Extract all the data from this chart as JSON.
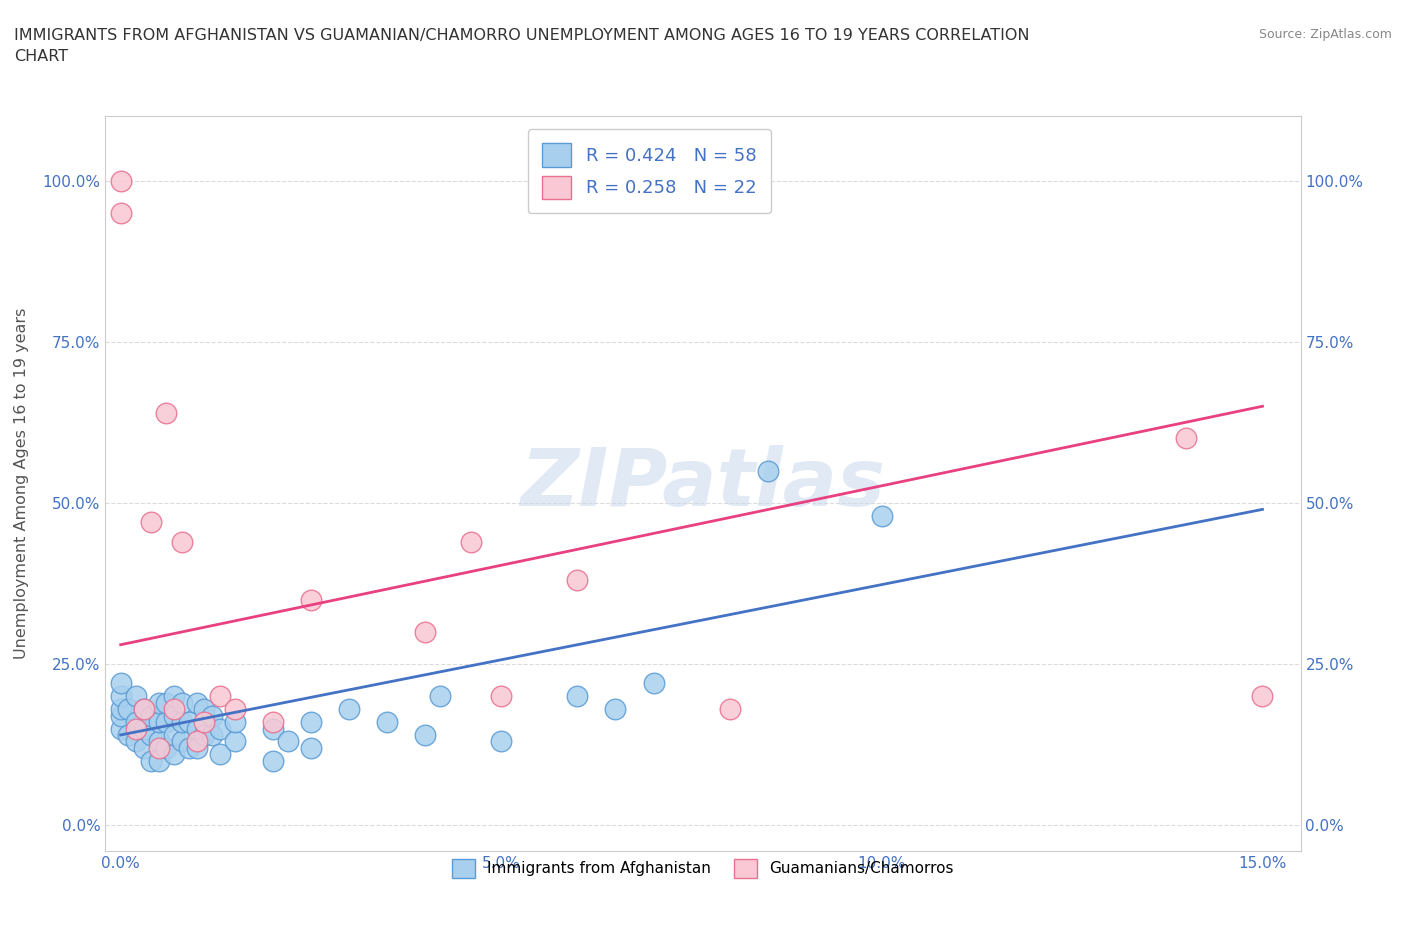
{
  "title": "IMMIGRANTS FROM AFGHANISTAN VS GUAMANIAN/CHAMORRO UNEMPLOYMENT AMONG AGES 16 TO 19 YEARS CORRELATION\nCHART",
  "source": "Source: ZipAtlas.com",
  "ylabel": "Unemployment Among Ages 16 to 19 years",
  "x_ticks": [
    0.0,
    0.05,
    0.1,
    0.15
  ],
  "x_tick_labels": [
    "0.0%",
    "5.0%",
    "10.0%",
    "15.0%"
  ],
  "y_ticks": [
    0.0,
    0.25,
    0.5,
    0.75,
    1.0
  ],
  "y_tick_labels": [
    "0.0%",
    "25.0%",
    "50.0%",
    "75.0%",
    "100.0%"
  ],
  "blue_color": "#A8D0EE",
  "blue_edge_color": "#5B9BD5",
  "pink_color": "#F9C8D4",
  "pink_edge_color": "#E87090",
  "blue_line_color": "#4472C4",
  "pink_line_color": "#E84080",
  "R_blue": 0.424,
  "N_blue": 58,
  "R_pink": 0.258,
  "N_pink": 22,
  "legend_label_blue": "Immigrants from Afghanistan",
  "legend_label_pink": "Guamanians/Chamorros",
  "watermark": "ZIPatlas",
  "blue_x": [
    0.0,
    0.0,
    0.0,
    0.0,
    0.0,
    0.001,
    0.001,
    0.002,
    0.002,
    0.002,
    0.003,
    0.003,
    0.003,
    0.004,
    0.004,
    0.004,
    0.005,
    0.005,
    0.005,
    0.005,
    0.006,
    0.006,
    0.006,
    0.007,
    0.007,
    0.007,
    0.007,
    0.008,
    0.008,
    0.008,
    0.009,
    0.009,
    0.01,
    0.01,
    0.01,
    0.011,
    0.011,
    0.012,
    0.012,
    0.013,
    0.013,
    0.015,
    0.015,
    0.02,
    0.02,
    0.022,
    0.025,
    0.025,
    0.03,
    0.035,
    0.04,
    0.042,
    0.05,
    0.06,
    0.065,
    0.07,
    0.085,
    0.1
  ],
  "blue_y": [
    0.15,
    0.17,
    0.18,
    0.2,
    0.22,
    0.14,
    0.18,
    0.13,
    0.16,
    0.2,
    0.12,
    0.15,
    0.18,
    0.1,
    0.14,
    0.17,
    0.1,
    0.13,
    0.16,
    0.19,
    0.12,
    0.16,
    0.19,
    0.11,
    0.14,
    0.17,
    0.2,
    0.13,
    0.16,
    0.19,
    0.12,
    0.16,
    0.12,
    0.15,
    0.19,
    0.14,
    0.18,
    0.14,
    0.17,
    0.11,
    0.15,
    0.13,
    0.16,
    0.1,
    0.15,
    0.13,
    0.12,
    0.16,
    0.18,
    0.16,
    0.14,
    0.2,
    0.13,
    0.2,
    0.18,
    0.22,
    0.55,
    0.48
  ],
  "pink_x": [
    0.0,
    0.0,
    0.002,
    0.003,
    0.004,
    0.005,
    0.006,
    0.007,
    0.008,
    0.01,
    0.011,
    0.013,
    0.015,
    0.02,
    0.025,
    0.04,
    0.046,
    0.05,
    0.06,
    0.08,
    0.14,
    0.15
  ],
  "pink_y": [
    0.95,
    1.0,
    0.15,
    0.18,
    0.47,
    0.12,
    0.64,
    0.18,
    0.44,
    0.13,
    0.16,
    0.2,
    0.18,
    0.16,
    0.35,
    0.3,
    0.44,
    0.2,
    0.38,
    0.18,
    0.6,
    0.2
  ],
  "blue_line_x": [
    0.0,
    0.15
  ],
  "blue_line_y": [
    0.14,
    0.49
  ],
  "pink_line_x": [
    0.0,
    0.15
  ],
  "pink_line_y": [
    0.28,
    0.65
  ]
}
